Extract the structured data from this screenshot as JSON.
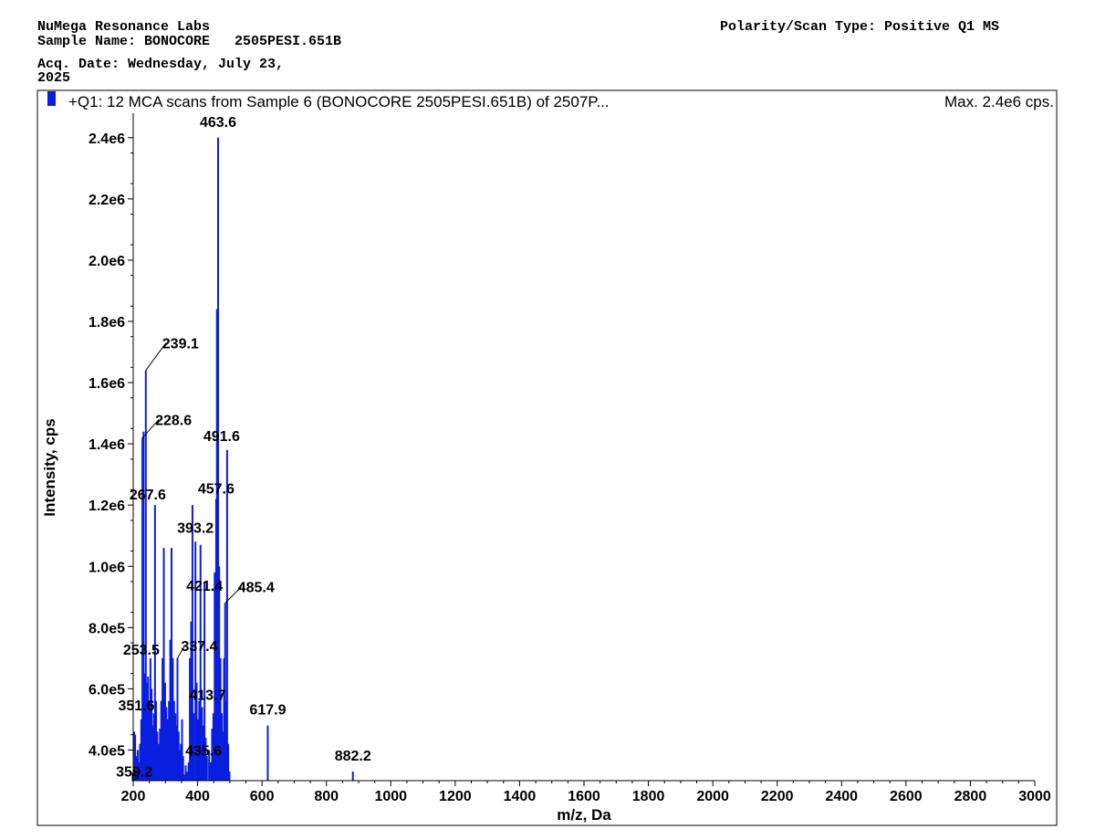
{
  "header": {
    "lab": "NuMega Resonance Labs",
    "sample_name": "Sample Name: BONOCORE   2505PESI.651B",
    "acq_date_line1": "Acq. Date: Wednesday, July 23,",
    "acq_date_line2": "2025",
    "polarity": "Polarity/Scan Type: Positive Q1 MS"
  },
  "colors": {
    "spectrum": "#0a1ee0",
    "axis": "#000000"
  },
  "chart_data": {
    "type": "bar",
    "legend": "+Q1: 12 MCA scans from Sample 6 (BONOCORE   2505PESI.651B) of 2507P...",
    "max_label": "Max. 2.4e6 cps.",
    "xlabel": "m/z, Da",
    "ylabel": "Intensity, cps",
    "xlim": [
      200,
      3000
    ],
    "ylim": [
      300000,
      2450000
    ],
    "x_ticks": [
      200,
      400,
      600,
      800,
      1000,
      1200,
      1400,
      1600,
      1800,
      2000,
      2200,
      2400,
      2600,
      2800,
      3000
    ],
    "y_ticks": [
      {
        "value": 400000,
        "label": "4.0e5"
      },
      {
        "value": 600000,
        "label": "6.0e5"
      },
      {
        "value": 800000,
        "label": "8.0e5"
      },
      {
        "value": 1000000,
        "label": "1.0e6"
      },
      {
        "value": 1200000,
        "label": "1.2e6"
      },
      {
        "value": 1400000,
        "label": "1.4e6"
      },
      {
        "value": 1600000,
        "label": "1.6e6"
      },
      {
        "value": 1800000,
        "label": "1.8e6"
      },
      {
        "value": 2000000,
        "label": "2.0e6"
      },
      {
        "value": 2200000,
        "label": "2.2e6"
      },
      {
        "value": 2400000,
        "label": "2.4e6"
      }
    ],
    "peaks": [
      [
        203,
        460000
      ],
      [
        206,
        450000
      ],
      [
        210,
        380000
      ],
      [
        214,
        400000
      ],
      [
        218,
        360000
      ],
      [
        221,
        420000
      ],
      [
        225,
        500000
      ],
      [
        228.6,
        1420000
      ],
      [
        232,
        1440000
      ],
      [
        236,
        650000
      ],
      [
        239.1,
        1640000
      ],
      [
        243,
        620000
      ],
      [
        246,
        640000
      ],
      [
        249,
        560000
      ],
      [
        253.5,
        700000
      ],
      [
        257,
        600000
      ],
      [
        260,
        480000
      ],
      [
        264,
        520000
      ],
      [
        267.6,
        1200000
      ],
      [
        271,
        560000
      ],
      [
        275,
        460000
      ],
      [
        279,
        420000
      ],
      [
        283,
        470000
      ],
      [
        287,
        560000
      ],
      [
        291,
        700000
      ],
      [
        295,
        1060000
      ],
      [
        299,
        620000
      ],
      [
        303,
        540000
      ],
      [
        307,
        500000
      ],
      [
        311,
        560000
      ],
      [
        315,
        760000
      ],
      [
        319,
        1060000
      ],
      [
        323,
        700000
      ],
      [
        327,
        560000
      ],
      [
        331,
        520000
      ],
      [
        334,
        480000
      ],
      [
        337.4,
        700000
      ],
      [
        341,
        460000
      ],
      [
        345,
        400000
      ],
      [
        348,
        420000
      ],
      [
        351.6,
        500000
      ],
      [
        355,
        380000
      ],
      [
        359.2,
        320000
      ],
      [
        363,
        350000
      ],
      [
        367,
        330000
      ],
      [
        372,
        360000
      ],
      [
        376,
        700000
      ],
      [
        380,
        820000
      ],
      [
        384,
        1200000
      ],
      [
        388,
        520000
      ],
      [
        393.2,
        1080000
      ],
      [
        397,
        620000
      ],
      [
        401,
        500000
      ],
      [
        405,
        560000
      ],
      [
        409,
        1070000
      ],
      [
        413.7,
        540000
      ],
      [
        417,
        480000
      ],
      [
        421.4,
        950000
      ],
      [
        425,
        440000
      ],
      [
        429,
        380000
      ],
      [
        435.6,
        400000
      ],
      [
        440,
        360000
      ],
      [
        445,
        470000
      ],
      [
        449,
        520000
      ],
      [
        453,
        980000
      ],
      [
        457.6,
        1220000
      ],
      [
        460,
        1840000
      ],
      [
        463.6,
        2400000
      ],
      [
        467,
        1000000
      ],
      [
        471,
        700000
      ],
      [
        475,
        520000
      ],
      [
        479,
        460000
      ],
      [
        482,
        700000
      ],
      [
        485.4,
        880000
      ],
      [
        488,
        560000
      ],
      [
        491.6,
        1380000
      ],
      [
        495,
        420000
      ],
      [
        499,
        330000
      ],
      [
        617.9,
        480000
      ],
      [
        882.2,
        330000
      ]
    ],
    "labels": [
      {
        "text": "463.6",
        "mz": 463.6,
        "dx": 0,
        "dy": -6,
        "leader": false
      },
      {
        "text": "239.1",
        "mz": 239.1,
        "dx": 38,
        "dy": -18,
        "leader": true
      },
      {
        "text": "228.6",
        "mz": 228.6,
        "dx": 34,
        "dy": -8,
        "leader": true
      },
      {
        "text": "491.6",
        "mz": 491.6,
        "dx": -6,
        "dy": -4,
        "leader": false
      },
      {
        "text": "267.6",
        "mz": 267.6,
        "dx": -8,
        "dy": 0,
        "leader": false
      },
      {
        "text": "457.6",
        "mz": 457.6,
        "dx": 0,
        "dy": 0,
        "leader": false
      },
      {
        "text": "393.2",
        "mz": 393.2,
        "dx": 0,
        "dy": -4,
        "leader": false
      },
      {
        "text": "421.4",
        "mz": 421.4,
        "dx": 0,
        "dy": 16,
        "leader": false
      },
      {
        "text": "485.4",
        "mz": 485.4,
        "dx": 34,
        "dy": -6,
        "leader": true
      },
      {
        "text": "253.5",
        "mz": 253.5,
        "dx": -10,
        "dy": 2,
        "leader": false
      },
      {
        "text": "337.4",
        "mz": 337.4,
        "dx": 24,
        "dy": -2,
        "leader": true
      },
      {
        "text": "413.7",
        "mz": 413.7,
        "dx": 6,
        "dy": -2,
        "leader": false
      },
      {
        "text": "617.9",
        "mz": 617.9,
        "dx": 0,
        "dy": -6,
        "leader": false
      },
      {
        "text": "351.6",
        "mz": 351.6,
        "dx": -50,
        "dy": -4,
        "leader": false
      },
      {
        "text": "435.6",
        "mz": 435.6,
        "dx": -6,
        "dy": 12,
        "leader": false
      },
      {
        "text": "882.2",
        "mz": 882.2,
        "dx": 0,
        "dy": -6,
        "leader": false
      },
      {
        "text": "359.2",
        "mz": 359.2,
        "dx": -55,
        "dy": 8,
        "leader": false
      }
    ]
  }
}
